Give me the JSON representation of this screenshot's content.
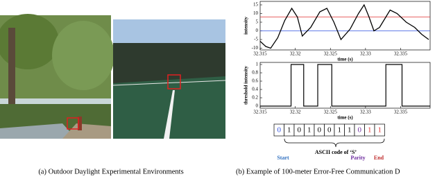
{
  "figure": {
    "panel_a": {
      "caption": "(a) Outdoor Daylight Experimental Environments"
    },
    "panel_b": {
      "caption": "(b) Example of 100-meter Error-Free Communication D",
      "charts": [
        {
          "type": "line",
          "xlabel": "time (s)",
          "ylabel": "intensity",
          "x": [
            32.315,
            32.3158,
            32.3165,
            32.3175,
            32.3185,
            32.3195,
            32.3203,
            32.321,
            32.3222,
            32.3235,
            32.3245,
            32.3255,
            32.3265,
            32.3278,
            32.329,
            32.3298,
            32.3305,
            32.3312,
            32.332,
            32.3335,
            32.3345,
            32.3358,
            32.337,
            32.338,
            32.339
          ],
          "series": [
            {
              "color": "#000000",
              "values": [
                -6,
                -9,
                -10,
                -4,
                6,
                13,
                8,
                -3,
                2,
                11,
                13,
                5,
                -5,
                1,
                10,
                15,
                8,
                0,
                2,
                12,
                10,
                5,
                2,
                -2,
                -5
              ]
            }
          ],
          "hlines": [
            {
              "value": 8,
              "color": "#e03030"
            },
            {
              "value": 0,
              "color": "#3050e0"
            }
          ],
          "xlim": [
            32.315,
            32.3392
          ],
          "xticks": [
            32.315,
            32.32,
            32.325,
            32.33,
            32.335
          ],
          "ylim": [
            -11,
            17
          ],
          "yticks": [
            -10,
            -5,
            0,
            5,
            10,
            15
          ]
        },
        {
          "type": "step",
          "xlabel": "time (s)",
          "ylabel": "threshold intensity",
          "x": [
            32.315,
            32.3194,
            32.3212,
            32.3232,
            32.3252,
            32.3329,
            32.3352,
            32.3392
          ],
          "series": [
            {
              "color": "#000000",
              "values": [
                0,
                1,
                0,
                1,
                0,
                1,
                0,
                0
              ]
            }
          ],
          "xlim": [
            32.315,
            32.3392
          ],
          "xticks": [
            32.315,
            32.32,
            32.325,
            32.33,
            32.335
          ],
          "ylim": [
            -0.05,
            1.05
          ],
          "yticks": [
            0,
            0.2,
            0.4,
            0.6,
            0.8,
            1
          ]
        }
      ],
      "bits": [
        "0",
        "1",
        "0",
        "1",
        "0",
        "0",
        "1",
        "1",
        "0",
        "1",
        "1"
      ],
      "bit_colors": [
        "#3050e0",
        "#000000",
        "#000000",
        "#000000",
        "#000000",
        "#000000",
        "#000000",
        "#000000",
        "#7030a0",
        "#e03030",
        "#e03030"
      ],
      "labels": {
        "start": "Start",
        "ascii": "ASCII code of ‘S’",
        "parity": "Parity",
        "end": "End"
      }
    }
  }
}
